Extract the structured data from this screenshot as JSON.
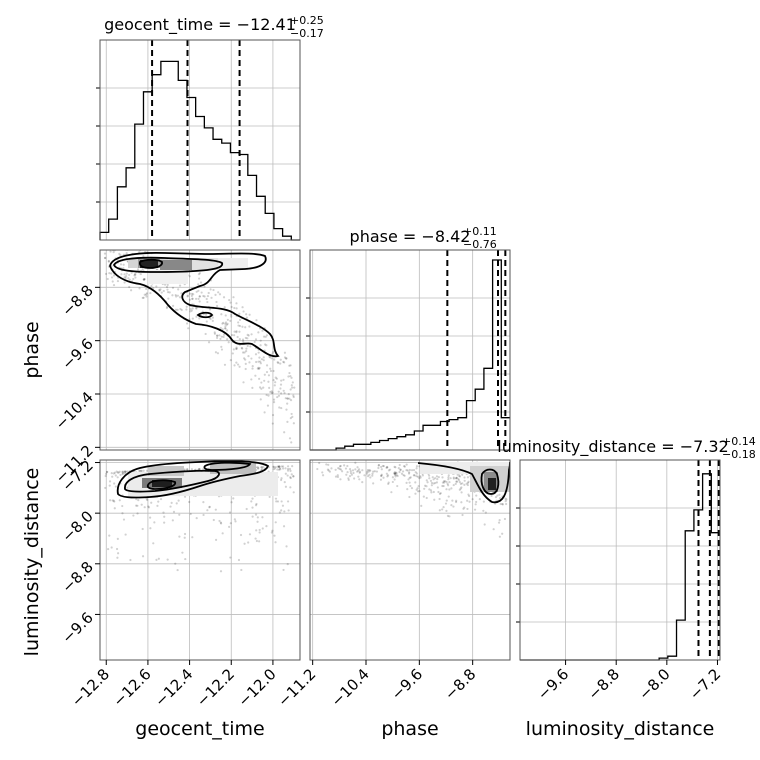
{
  "chart_data": {
    "type": "corner",
    "parameters": [
      {
        "name": "geocent_time",
        "label": "geocent_time",
        "title": {
          "prefix": "geocent_time = ",
          "median": "−12.41",
          "plus": "+0.25",
          "minus": "−0.17"
        },
        "median": -12.41,
        "q_lo": -12.58,
        "q_hi": -12.16,
        "range": [
          -12.83,
          -11.87
        ],
        "ticks": [
          {
            "v": -12.8,
            "label": "−12.8"
          },
          {
            "v": -12.6,
            "label": "−12.6"
          },
          {
            "v": -12.4,
            "label": "−12.4"
          },
          {
            "v": -12.2,
            "label": "−12.2"
          },
          {
            "v": -12.0,
            "label": "−12.0"
          }
        ],
        "hist": [
          0.04,
          0.11,
          0.28,
          0.38,
          0.61,
          0.78,
          0.87,
          0.94,
          0.94,
          0.84,
          0.75,
          0.65,
          0.59,
          0.53,
          0.51,
          0.46,
          0.45,
          0.34,
          0.23,
          0.14,
          0.06,
          0.02,
          0.0
        ]
      },
      {
        "name": "phase",
        "label": "phase",
        "title": {
          "prefix": "phase = ",
          "median": "−8.42",
          "plus": "+0.11",
          "minus": "−0.76"
        },
        "median": -8.42,
        "q_lo": -9.18,
        "q_hi": -8.31,
        "range": [
          -11.24,
          -8.24
        ],
        "ticks": [
          {
            "v": -11.2,
            "label": "−11.2"
          },
          {
            "v": -10.4,
            "label": "−10.4"
          },
          {
            "v": -9.6,
            "label": "−9.6"
          },
          {
            "v": -8.8,
            "label": "−8.8"
          }
        ],
        "hist": [
          0.0,
          0.0,
          0.0,
          0.01,
          0.02,
          0.03,
          0.03,
          0.04,
          0.05,
          0.06,
          0.07,
          0.08,
          0.1,
          0.13,
          0.13,
          0.15,
          0.16,
          0.17,
          0.26,
          0.32,
          0.43,
          1.0,
          0.17
        ]
      },
      {
        "name": "luminosity_distance",
        "label": "luminosity_distance",
        "title": {
          "prefix": "luminosity_distance = ",
          "median": "−7.32",
          "plus": "+0.14",
          "minus": "−0.18"
        },
        "median": -7.32,
        "q_lo": -7.5,
        "q_hi": -7.18,
        "range": [
          -10.32,
          -7.16
        ],
        "ticks": [
          {
            "v": -9.6,
            "label": "−9.6"
          },
          {
            "v": -8.8,
            "label": "−8.8"
          },
          {
            "v": -8.0,
            "label": "−8.0"
          },
          {
            "v": -7.2,
            "label": "−7.2"
          }
        ],
        "hist": [
          0.0,
          0.0,
          0.0,
          0.0,
          0.0,
          0.0,
          0.0,
          0.0,
          0.0,
          0.0,
          0.0,
          0.0,
          0.0,
          0.0,
          0.0,
          0.0,
          0.01,
          0.02,
          0.21,
          0.68,
          0.79,
          0.98,
          0.67
        ]
      }
    ],
    "grid": true,
    "lower_triangle": "2d histogram density with scatter points and contours"
  }
}
